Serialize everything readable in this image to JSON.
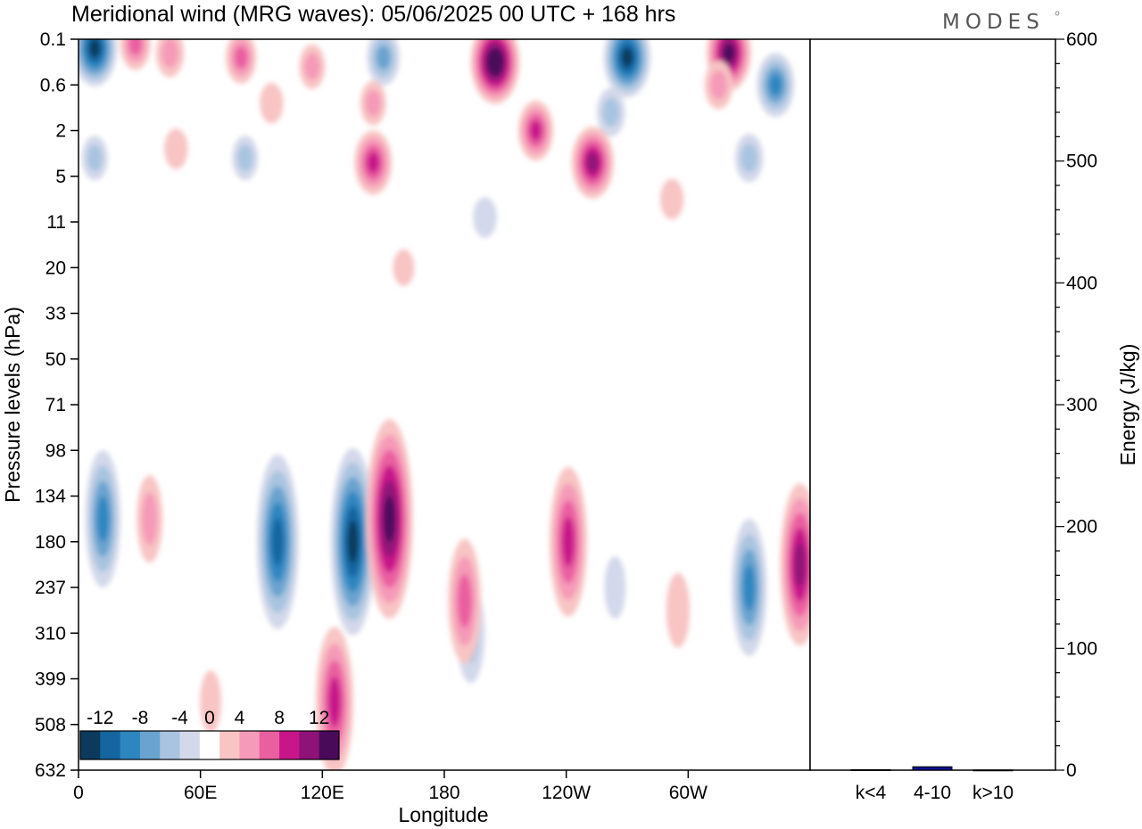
{
  "header": {
    "title": "Meridional wind (MRG waves):  05/06/2025  00 UTC  + 168 hrs",
    "brand": "MODES"
  },
  "chart_data": [
    {
      "type": "heatmap",
      "title": "Meridional wind (MRG waves):  05/06/2025  00 UTC  + 168 hrs",
      "xlabel": "Longitude",
      "ylabel": "Pressure levels (hPa)",
      "x_ticks": [
        "0",
        "60E",
        "120E",
        "180",
        "120W",
        "60W"
      ],
      "x_tick_degrees": [
        0,
        60,
        120,
        180,
        240,
        300
      ],
      "xlim": [
        0,
        360
      ],
      "y_ticks": [
        "0.1",
        "0.6",
        "2",
        "5",
        "11",
        "20",
        "33",
        "50",
        "71",
        "98",
        "134",
        "180",
        "237",
        "310",
        "399",
        "508",
        "632"
      ],
      "y_axis": "pressure levels, top to bottom, equally spaced",
      "colorbar": {
        "labels": [
          "-12",
          "-8",
          "-4",
          "0",
          "4",
          "8",
          "12"
        ],
        "levels": [
          -14,
          -12,
          -10,
          -8,
          -6,
          -4,
          -2,
          2,
          4,
          6,
          8,
          10,
          12,
          14
        ],
        "colors": [
          "#0b3a5c",
          "#1565a0",
          "#2e86c1",
          "#6aa3cf",
          "#a9c4e0",
          "#d3d8ea",
          "#ffffff",
          "#f8c4c4",
          "#f59ab8",
          "#ea5fa0",
          "#c8168a",
          "#8e1277",
          "#4a0a5a"
        ]
      },
      "features": [
        {
          "lon": 8,
          "level": 0.2,
          "value": -13
        },
        {
          "lon": 28,
          "level": 0.1,
          "value": 7
        },
        {
          "lon": 45,
          "level": 0.3,
          "value": 6
        },
        {
          "lon": 80,
          "level": 0.4,
          "value": 7
        },
        {
          "lon": 115,
          "level": 0.6,
          "value": 5
        },
        {
          "lon": 150,
          "level": 0.4,
          "value": -8
        },
        {
          "lon": 205,
          "level": 0.5,
          "value": 15
        },
        {
          "lon": 270,
          "level": 0.4,
          "value": -14
        },
        {
          "lon": 320,
          "level": 0.3,
          "value": 13
        },
        {
          "lon": 343,
          "level": 1.0,
          "value": -10
        },
        {
          "lon": 315,
          "level": 1.0,
          "value": 6
        },
        {
          "lon": 262,
          "level": 1.6,
          "value": -6
        },
        {
          "lon": 225,
          "level": 2.0,
          "value": 9
        },
        {
          "lon": 145,
          "level": 1.4,
          "value": 5
        },
        {
          "lon": 95,
          "level": 1.4,
          "value": 4
        },
        {
          "lon": 48,
          "level": 2.4,
          "value": 4
        },
        {
          "lon": 8,
          "level": 2.6,
          "value": -5
        },
        {
          "lon": 82,
          "level": 2.6,
          "value": -5
        },
        {
          "lon": 145,
          "level": 2.7,
          "value": 10
        },
        {
          "lon": 253,
          "level": 2.7,
          "value": 12
        },
        {
          "lon": 330,
          "level": 2.6,
          "value": -6
        },
        {
          "lon": 292,
          "level": 3.5,
          "value": 4
        },
        {
          "lon": 200,
          "level": 3.9,
          "value": -4
        },
        {
          "lon": 160,
          "level": 5.0,
          "value": 3
        },
        {
          "lon": 12,
          "level": 10.5,
          "value": -9
        },
        {
          "lon": 35,
          "level": 10.5,
          "value": 5
        },
        {
          "lon": 98,
          "level": 11.0,
          "value": -12
        },
        {
          "lon": 135,
          "level": 11.0,
          "value": -13
        },
        {
          "lon": 153,
          "level": 10.5,
          "value": 14
        },
        {
          "lon": 193,
          "level": 13.0,
          "value": -6
        },
        {
          "lon": 190,
          "level": 12.3,
          "value": 8
        },
        {
          "lon": 241,
          "level": 11.0,
          "value": 10
        },
        {
          "lon": 264,
          "level": 12.0,
          "value": -3
        },
        {
          "lon": 295,
          "level": 12.5,
          "value": 4
        },
        {
          "lon": 330,
          "level": 12.0,
          "value": -9
        },
        {
          "lon": 355,
          "level": 11.5,
          "value": 11
        },
        {
          "lon": 126,
          "level": 14.5,
          "value": 10
        },
        {
          "lon": 65,
          "level": 14.5,
          "value": 3
        }
      ]
    },
    {
      "type": "bar",
      "categories": [
        "k<4",
        "4-10",
        "k>10"
      ],
      "values": [
        0.4,
        2.8,
        0.2
      ],
      "ylabel": "Energy (J/kg)",
      "ylim": [
        0,
        600
      ],
      "y_ticks": [
        "0",
        "100",
        "200",
        "300",
        "400",
        "500",
        "600"
      ],
      "bar_color": "#101090"
    }
  ]
}
